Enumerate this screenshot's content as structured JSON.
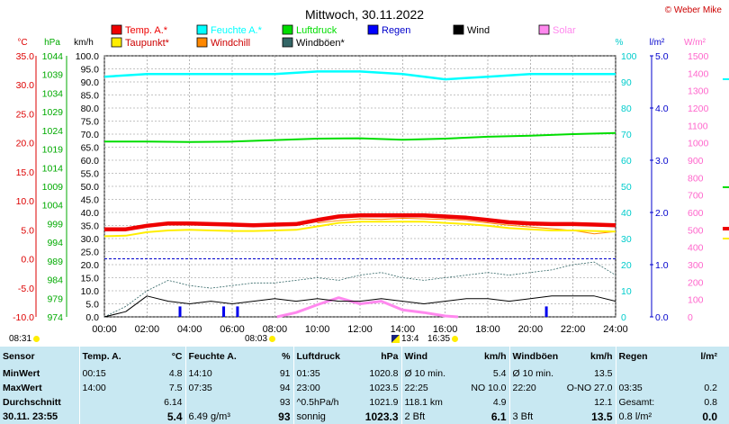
{
  "chart_data": {
    "type": "line",
    "title": "Mittwoch, 30.11.2022",
    "copyright": "© Weber Mike",
    "x_ticks": [
      "00:00",
      "02:00",
      "04:00",
      "06:00",
      "08:00",
      "10:00",
      "12:00",
      "14:00",
      "16:00",
      "18:00",
      "20:00",
      "22:00",
      "24:00"
    ],
    "axes": [
      {
        "unit": "°C",
        "color": "#dd0000",
        "range": [
          -10,
          35
        ],
        "ticks": [
          "35.0",
          "30.0",
          "25.0",
          "20.0",
          "15.0",
          "10.0",
          "5.0",
          "0.0",
          "-5.0",
          "-10.0"
        ]
      },
      {
        "unit": "hPa",
        "color": "#00aa00",
        "range": [
          974,
          1044
        ],
        "ticks": [
          "1044",
          "1039",
          "1034",
          "1029",
          "1024",
          "1019",
          "1014",
          "1009",
          "1004",
          "999",
          "994",
          "989",
          "984",
          "979",
          "974"
        ]
      },
      {
        "unit": "km/h",
        "color": "#000000",
        "range": [
          0,
          100
        ],
        "ticks": [
          "100.0",
          "95.0",
          "90.0",
          "85.0",
          "80.0",
          "75.0",
          "70.0",
          "65.0",
          "60.0",
          "55.0",
          "50.0",
          "45.0",
          "40.0",
          "35.0",
          "30.0",
          "25.0",
          "20.0",
          "15.0",
          "10.0",
          "5.0",
          "0.0"
        ]
      },
      {
        "unit": "%",
        "color": "#00cccc",
        "range": [
          0,
          100
        ],
        "ticks": [
          "100",
          "90",
          "80",
          "70",
          "60",
          "50",
          "40",
          "30",
          "20",
          "10",
          "0"
        ]
      },
      {
        "unit": "l/m²",
        "color": "#0000cc",
        "range": [
          0,
          5
        ],
        "ticks": [
          "5.0",
          "4.0",
          "3.0",
          "2.0",
          "1.0",
          "0.0"
        ]
      },
      {
        "unit": "W/m²",
        "color": "#ff66cc",
        "range": [
          0,
          1500
        ],
        "ticks": [
          "1500",
          "1400",
          "1300",
          "1200",
          "1100",
          "1000",
          "900",
          "800",
          "700",
          "600",
          "500",
          "400",
          "300",
          "200",
          "100",
          "0"
        ]
      }
    ],
    "legend": [
      {
        "name": "Temp. A.*",
        "color": "#ee0000"
      },
      {
        "name": "Feuchte A.*",
        "color": "#00ffff"
      },
      {
        "name": "Luftdruck",
        "color": "#00dd00"
      },
      {
        "name": "Regen",
        "color": "#0000ff"
      },
      {
        "name": "Wind",
        "color": "#000000"
      },
      {
        "name": "Solar",
        "color": "#ff88ee"
      },
      {
        "name": "Taupunkt*",
        "color": "#ffee00"
      },
      {
        "name": "Windchill",
        "color": "#ff8800"
      },
      {
        "name": "Windböen*",
        "color": "#336666"
      }
    ],
    "series": [
      {
        "name": "Temp. A.*",
        "axis": "°C",
        "color": "#ee0000",
        "x": [
          0,
          1,
          2,
          3,
          4,
          5,
          6,
          7,
          8,
          9,
          10,
          11,
          12,
          13,
          14,
          15,
          16,
          17,
          18,
          19,
          20,
          21,
          22,
          23,
          24
        ],
        "y": [
          5.1,
          5.1,
          5.7,
          6.1,
          6.1,
          6.0,
          5.9,
          5.8,
          5.9,
          6.0,
          6.7,
          7.3,
          7.5,
          7.5,
          7.5,
          7.5,
          7.3,
          7.1,
          6.7,
          6.3,
          6.1,
          6.0,
          6.0,
          5.9,
          5.8
        ]
      },
      {
        "name": "Taupunkt*",
        "axis": "°C",
        "color": "#ffee00",
        "x": [
          0,
          1,
          2,
          3,
          4,
          5,
          6,
          7,
          8,
          9,
          10,
          11,
          12,
          13,
          14,
          15,
          16,
          17,
          18,
          19,
          20,
          21,
          22,
          23,
          24
        ],
        "y": [
          3.9,
          4.0,
          4.6,
          4.9,
          5.0,
          4.9,
          4.8,
          4.8,
          4.9,
          5.0,
          5.6,
          6.2,
          6.4,
          6.4,
          6.4,
          6.4,
          6.2,
          6.0,
          5.7,
          5.3,
          5.1,
          4.9,
          4.9,
          4.8,
          4.7
        ]
      },
      {
        "name": "Windchill",
        "axis": "°C",
        "color": "#ff8800",
        "x": [
          10,
          11,
          12,
          13,
          14,
          15,
          16,
          17,
          18,
          19,
          20,
          21,
          22,
          23,
          24
        ],
        "y": [
          6.2,
          6.6,
          6.9,
          6.8,
          7.0,
          6.9,
          6.8,
          6.6,
          6.2,
          5.8,
          5.5,
          5.2,
          4.9,
          4.3,
          4.7
        ]
      },
      {
        "name": "Feuchte A.*",
        "axis": "%",
        "color": "#00ffff",
        "x": [
          0,
          2,
          4,
          6,
          8,
          10,
          12,
          14,
          16,
          18,
          20,
          22,
          24
        ],
        "y": [
          92,
          93,
          93,
          93,
          93,
          94,
          94,
          93,
          91,
          92,
          93,
          93,
          93
        ]
      },
      {
        "name": "Luftdruck",
        "axis": "hPa",
        "color": "#00dd00",
        "x": [
          0,
          2,
          4,
          6,
          8,
          10,
          12,
          14,
          16,
          18,
          20,
          22,
          24
        ],
        "y": [
          1021.0,
          1021.0,
          1020.9,
          1021.0,
          1021.4,
          1021.8,
          1021.9,
          1021.5,
          1021.8,
          1022.3,
          1022.6,
          1023.0,
          1023.3
        ]
      },
      {
        "name": "Windböen*",
        "axis": "km/h",
        "color": "#336666",
        "x": [
          0,
          1,
          2,
          3,
          4,
          5,
          6,
          7,
          8,
          9,
          10,
          11,
          12,
          13,
          14,
          15,
          16,
          17,
          18,
          19,
          20,
          21,
          22,
          23,
          24
        ],
        "y": [
          0,
          4,
          10,
          14,
          12,
          11,
          12,
          13,
          13,
          14,
          15,
          14,
          16,
          17,
          15,
          14,
          15,
          16,
          17,
          16,
          17,
          18,
          20,
          21,
          16
        ]
      },
      {
        "name": "Wind",
        "axis": "km/h",
        "color": "#000000",
        "x": [
          0,
          1,
          2,
          3,
          4,
          5,
          6,
          7,
          8,
          9,
          10,
          11,
          12,
          13,
          14,
          15,
          16,
          17,
          18,
          19,
          20,
          21,
          22,
          23,
          24
        ],
        "y": [
          0,
          2,
          8,
          6,
          5,
          6,
          5,
          6,
          7,
          6,
          7,
          6,
          6,
          7,
          6,
          5,
          6,
          7,
          7,
          6,
          7,
          8,
          8,
          8,
          6
        ]
      },
      {
        "name": "Solar",
        "axis": "W/m²",
        "color": "#ff88ee",
        "x": [
          8.1,
          9,
          10,
          11,
          12,
          13,
          14,
          15,
          16,
          16.6
        ],
        "y": [
          0,
          25,
          70,
          110,
          75,
          90,
          40,
          25,
          5,
          0
        ]
      }
    ],
    "rain_bars": {
      "axis": "l/m²",
      "x": [
        3.55,
        5.6,
        6.25,
        20.75
      ],
      "y": [
        0.2,
        0.2,
        0.2,
        0.2
      ]
    },
    "sun": {
      "rise": "08:03",
      "set": "16:35",
      "moon": "13:4"
    },
    "prev_time": "08:31"
  },
  "stats": {
    "headers": [
      {
        "label": "Sensor",
        "unit": ""
      },
      {
        "label": "Temp. A.",
        "unit": "°C"
      },
      {
        "label": "Feuchte A.",
        "unit": "%"
      },
      {
        "label": "Luftdruck",
        "unit": "hPa"
      },
      {
        "label": "Wind",
        "unit": "km/h"
      },
      {
        "label": "Windböen",
        "unit": "km/h"
      },
      {
        "label": "Regen",
        "unit": "l/m²"
      }
    ],
    "rows": [
      {
        "label": "MinWert",
        "cells": [
          [
            "00:15",
            "4.8"
          ],
          [
            "14:10",
            "91"
          ],
          [
            "01:35",
            "1020.8"
          ],
          [
            "Ø 10 min.",
            "5.4"
          ],
          [
            "Ø 10 min.",
            "13.5"
          ],
          [
            "",
            ""
          ]
        ]
      },
      {
        "label": "MaxWert",
        "cells": [
          [
            "14:00",
            "7.5"
          ],
          [
            "07:35",
            "94"
          ],
          [
            "23:00",
            "1023.5"
          ],
          [
            "22:25",
            "NO 10.0"
          ],
          [
            "22:20",
            "O-NO 27.0"
          ],
          [
            "03:35",
            "0.2"
          ]
        ]
      },
      {
        "label": "Durchschnitt",
        "cells": [
          [
            "",
            "6.14"
          ],
          [
            "",
            "93"
          ],
          [
            "^0.5hPa/h",
            "1021.9"
          ],
          [
            "118.1 km",
            "4.9"
          ],
          [
            "",
            "12.1"
          ],
          [
            "Gesamt:",
            "0.8"
          ]
        ]
      },
      {
        "label": "30.11. 23:55",
        "cells": [
          [
            "",
            "5.4"
          ],
          [
            "6.49 g/m³",
            "93"
          ],
          [
            "sonnig",
            "1023.3"
          ],
          [
            "2 Bft",
            "6.1"
          ],
          [
            "3 Bft",
            "13.5"
          ],
          [
            "0.8 l/m²",
            "0.0"
          ]
        ]
      }
    ]
  }
}
